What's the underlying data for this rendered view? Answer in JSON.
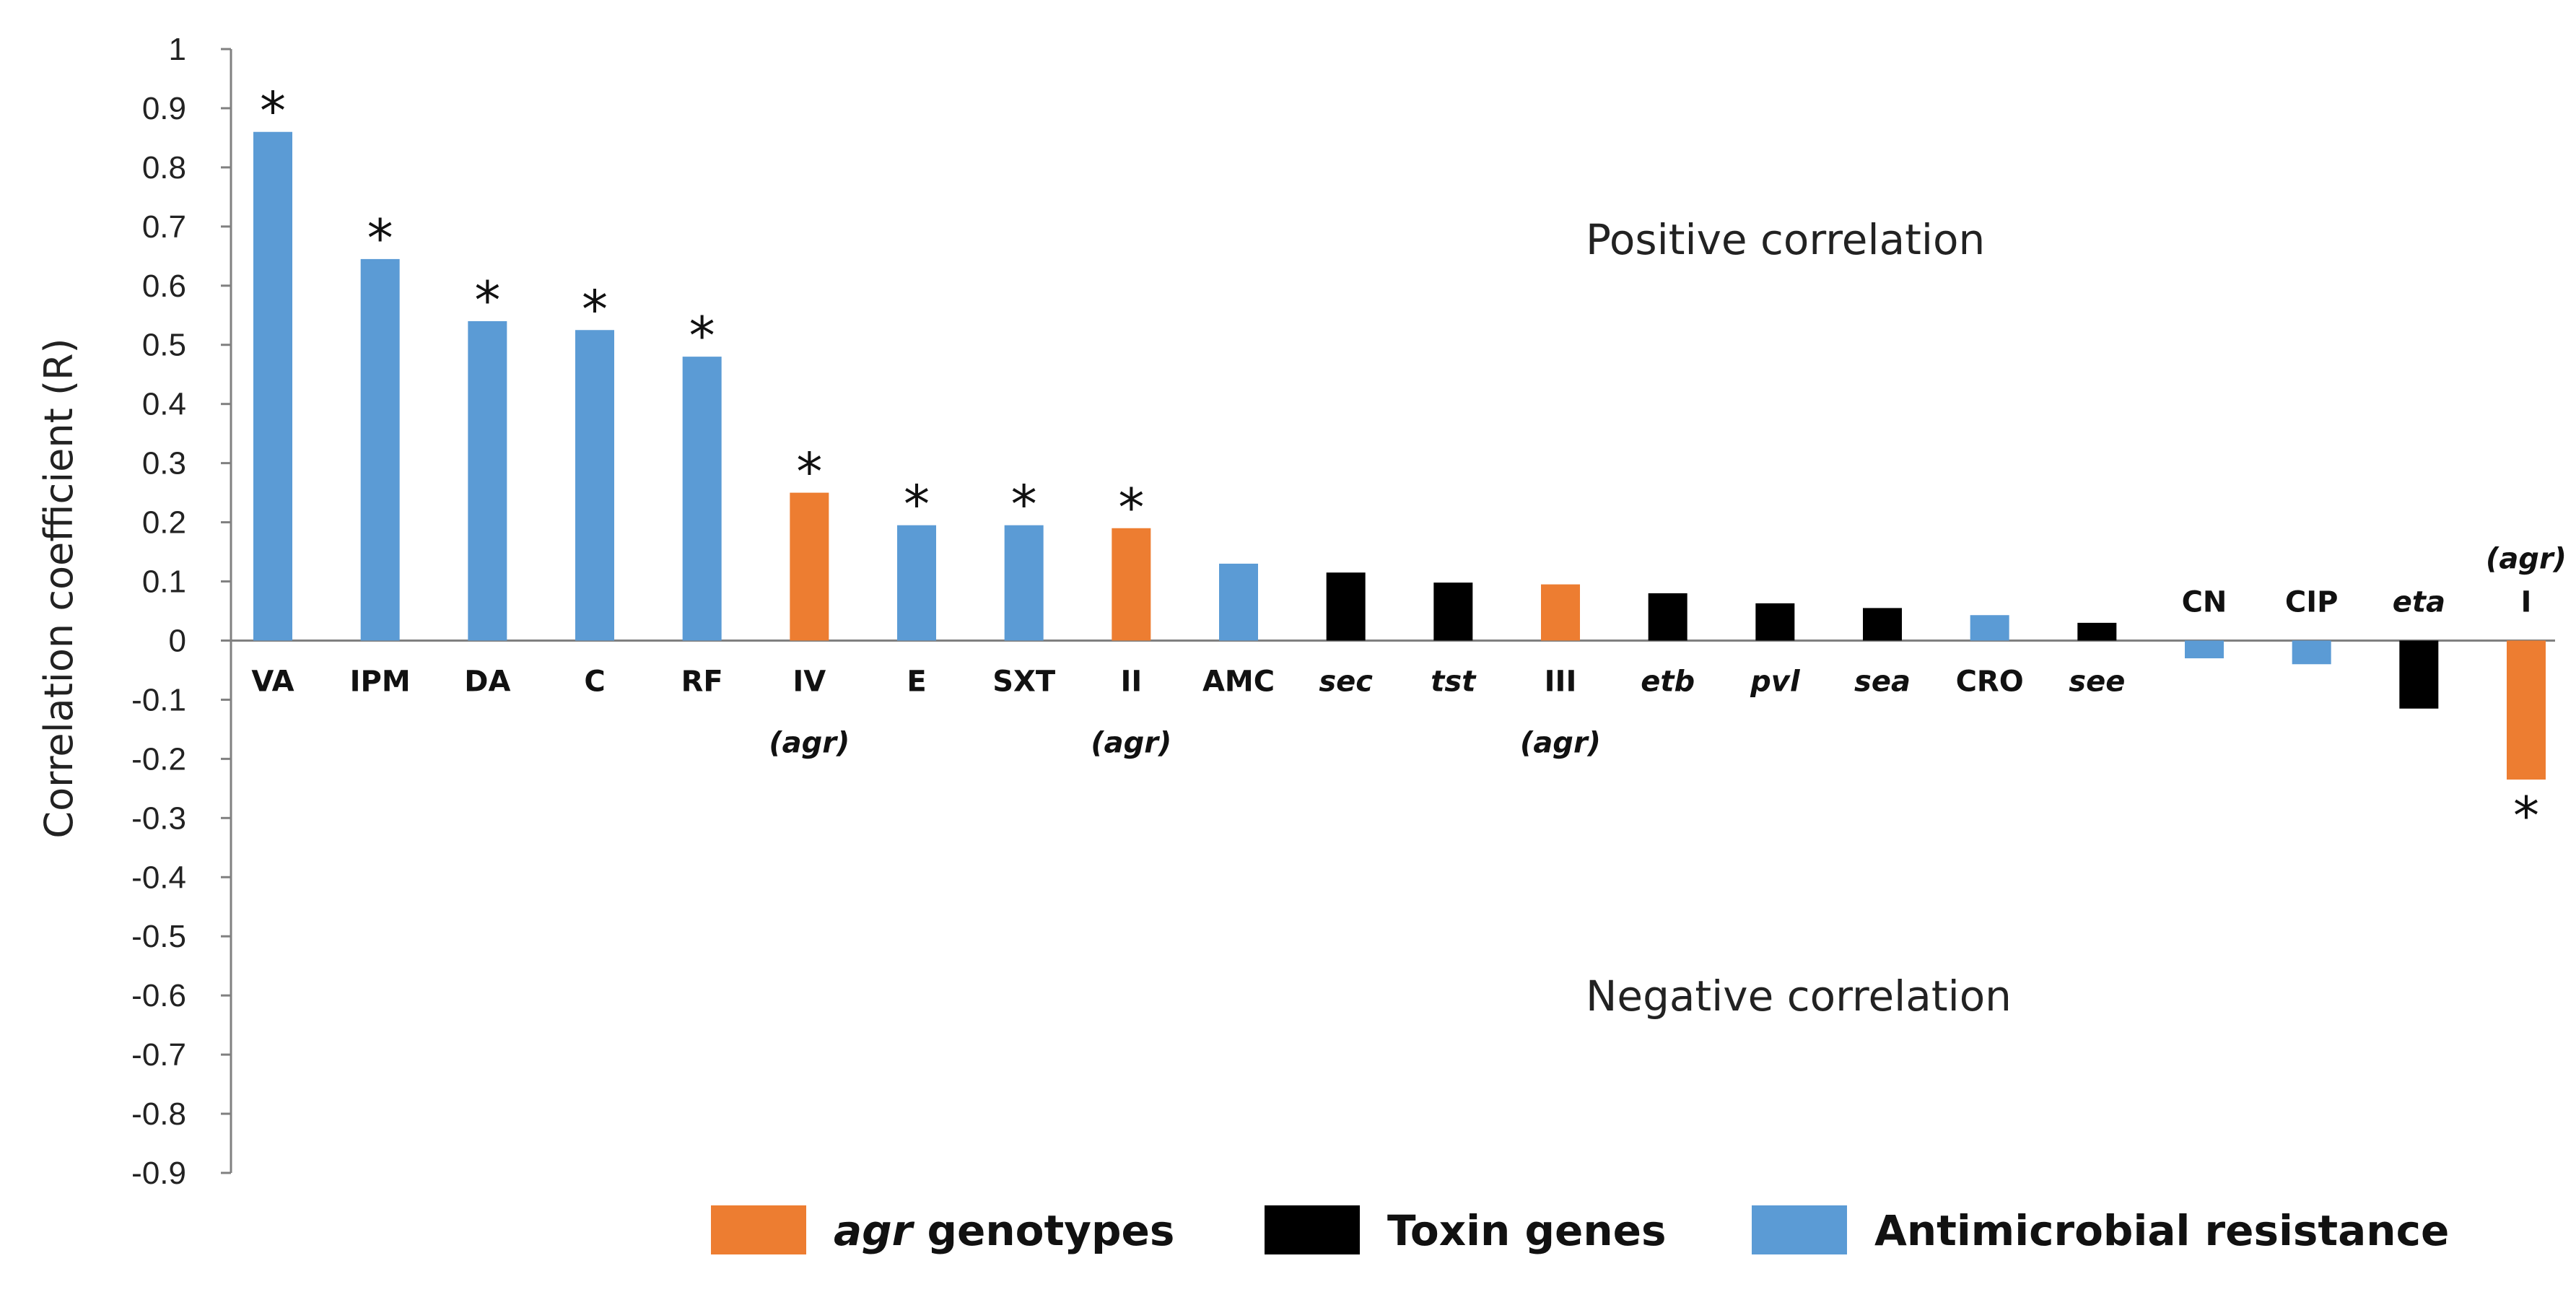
{
  "colors": {
    "agr": "#ED7D31",
    "toxin": "#000000",
    "amr": "#5B9BD5",
    "axis": "#808080"
  },
  "chart_data": {
    "type": "bar",
    "title": "",
    "ylabel": "Correlation coefficient (R)",
    "xlabel": "",
    "ylim": [
      -0.9,
      1
    ],
    "yticks": [
      "1",
      "0.9",
      "0.8",
      "0.7",
      "0.6",
      "0.5",
      "0.4",
      "0.3",
      "0.2",
      "0.1",
      "0",
      "-0.1",
      "-0.2",
      "-0.3",
      "-0.4",
      "-0.5",
      "-0.6",
      "-0.7",
      "-0.8",
      "-0.9"
    ],
    "categories": [
      {
        "label": "VA",
        "sub": "",
        "value": 0.86,
        "group": "amr",
        "significant": true,
        "italic": false
      },
      {
        "label": "IPM",
        "sub": "",
        "value": 0.645,
        "group": "amr",
        "significant": true,
        "italic": false
      },
      {
        "label": "DA",
        "sub": "",
        "value": 0.54,
        "group": "amr",
        "significant": true,
        "italic": false
      },
      {
        "label": "C",
        "sub": "",
        "value": 0.525,
        "group": "amr",
        "significant": true,
        "italic": false
      },
      {
        "label": "RF",
        "sub": "",
        "value": 0.48,
        "group": "amr",
        "significant": true,
        "italic": false
      },
      {
        "label": "IV",
        "sub": "(agr)",
        "value": 0.25,
        "group": "agr",
        "significant": true,
        "italic": false
      },
      {
        "label": "E",
        "sub": "",
        "value": 0.195,
        "group": "amr",
        "significant": true,
        "italic": false
      },
      {
        "label": "SXT",
        "sub": "",
        "value": 0.195,
        "group": "amr",
        "significant": true,
        "italic": false
      },
      {
        "label": "II",
        "sub": "(agr)",
        "value": 0.19,
        "group": "agr",
        "significant": true,
        "italic": false
      },
      {
        "label": "AMC",
        "sub": "",
        "value": 0.13,
        "group": "amr",
        "significant": false,
        "italic": false
      },
      {
        "label": "sec",
        "sub": "",
        "value": 0.115,
        "group": "toxin",
        "significant": false,
        "italic": true
      },
      {
        "label": "tst",
        "sub": "",
        "value": 0.098,
        "group": "toxin",
        "significant": false,
        "italic": true
      },
      {
        "label": "III",
        "sub": "(agr)",
        "value": 0.095,
        "group": "agr",
        "significant": false,
        "italic": false
      },
      {
        "label": "etb",
        "sub": "",
        "value": 0.08,
        "group": "toxin",
        "significant": false,
        "italic": true
      },
      {
        "label": "pvl",
        "sub": "",
        "value": 0.063,
        "group": "toxin",
        "significant": false,
        "italic": true
      },
      {
        "label": "sea",
        "sub": "",
        "value": 0.055,
        "group": "toxin",
        "significant": false,
        "italic": true
      },
      {
        "label": "CRO",
        "sub": "",
        "value": 0.043,
        "group": "amr",
        "significant": false,
        "italic": false
      },
      {
        "label": "see",
        "sub": "",
        "value": 0.03,
        "group": "toxin",
        "significant": false,
        "italic": true
      },
      {
        "label": "CN",
        "sub": "",
        "value": -0.03,
        "group": "amr",
        "significant": false,
        "italic": false
      },
      {
        "label": "CIP",
        "sub": "",
        "value": -0.04,
        "group": "amr",
        "significant": false,
        "italic": false
      },
      {
        "label": "eta",
        "sub": "",
        "value": -0.115,
        "group": "toxin",
        "significant": false,
        "italic": true
      },
      {
        "label": "I",
        "sub": "(agr)",
        "value": -0.235,
        "group": "agr",
        "significant": true,
        "italic": false
      }
    ],
    "annotations": {
      "positive": "Positive correlation",
      "negative": "Negative correlation",
      "star": "*"
    },
    "legend": [
      {
        "key": "agr",
        "italic_part": "agr",
        "label": " genotypes"
      },
      {
        "key": "toxin",
        "italic_part": "",
        "label": "Toxin genes"
      },
      {
        "key": "amr",
        "italic_part": "",
        "label": "Antimicrobial resistance"
      }
    ]
  }
}
